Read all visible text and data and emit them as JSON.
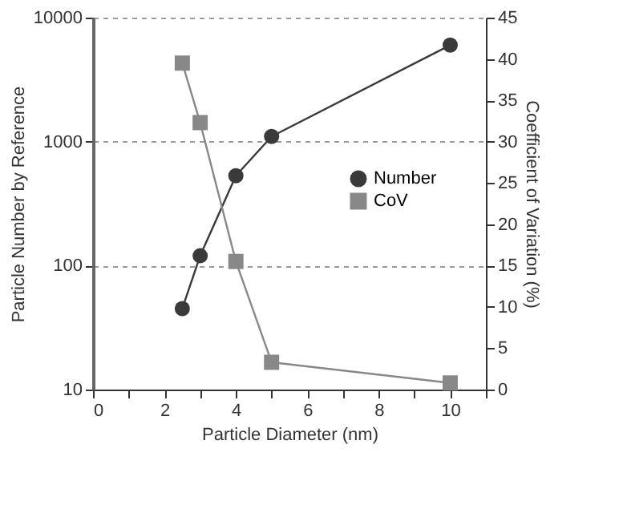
{
  "chart_data": {
    "type": "line",
    "xlabel": "Particle Diameter (nm)",
    "ylabel": "Particle Number by Reference",
    "y2label": "Coefficient of Variation (%)",
    "xlim": [
      0,
      11
    ],
    "xticks": [
      0,
      {
        "value": 1,
        "label": null
      },
      2,
      {
        "value": 3,
        "label": null
      },
      4,
      {
        "value": 5,
        "label": null
      },
      6,
      {
        "value": 7,
        "label": null
      },
      8,
      {
        "value": 9,
        "label": null
      },
      10,
      {
        "value": 11,
        "label": null
      }
    ],
    "ylim": [
      10,
      10000
    ],
    "yticks": [
      10,
      100,
      1000,
      10000
    ],
    "log": "y",
    "y2lim": [
      0,
      45
    ],
    "y2ticks": [
      0,
      5,
      10,
      15,
      20,
      25,
      30,
      35,
      40,
      45
    ],
    "grid": "y",
    "legend": "right",
    "line_style": "solid",
    "series": [
      {
        "name": "Number",
        "color": "#3a3a3a",
        "marker": "circle",
        "x": [
          2.5,
          3,
          4,
          5,
          10
        ],
        "values": [
          45,
          120,
          530,
          1100,
          6000
        ]
      },
      {
        "name": "CoV",
        "color": "#888888",
        "marker": "square",
        "axis": "y2",
        "x": [
          2.5,
          3,
          4,
          5,
          10
        ],
        "values": [
          39.5,
          32.3,
          15.5,
          3.3,
          0.8
        ]
      }
    ]
  }
}
